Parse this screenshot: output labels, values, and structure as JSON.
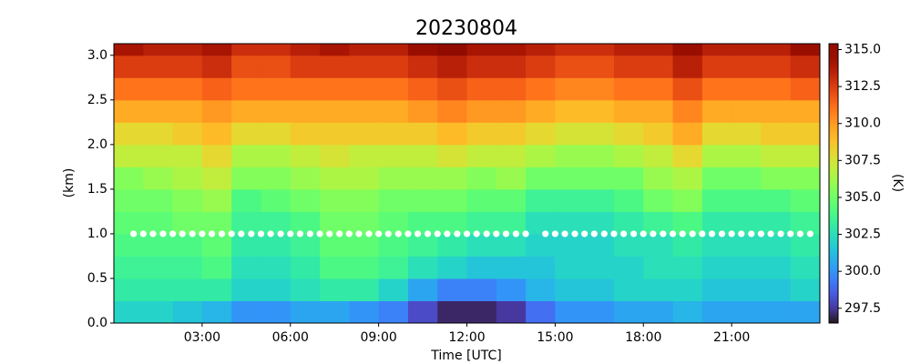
{
  "chart_data": {
    "type": "heatmap",
    "title": "20230804",
    "xlabel": "Time [UTC]",
    "ylabel": "(km)",
    "colorbar_label": "(K)",
    "colormap": "turbo",
    "clim": [
      296.5,
      315.4
    ],
    "colorbar_ticks": [
      297.5,
      {
        "value": 300,
        "label": "300.0"
      },
      302.5,
      {
        "value": 305,
        "label": "305.0"
      },
      307.5,
      {
        "value": 310,
        "label": "310.0"
      },
      312.5,
      {
        "value": 315,
        "label": "315.0"
      }
    ],
    "xlim": [
      0,
      24
    ],
    "ylim": [
      0,
      3.13
    ],
    "xticks": [
      {
        "value": 3,
        "label": "03:00"
      },
      {
        "value": 6,
        "label": "06:00"
      },
      {
        "value": 9,
        "label": "09:00"
      },
      {
        "value": 12,
        "label": "12:00"
      },
      {
        "value": 15,
        "label": "15:00"
      },
      {
        "value": 18,
        "label": "18:00"
      },
      {
        "value": 21,
        "label": "21:00"
      }
    ],
    "yticks": [
      {
        "value": 0,
        "label": "0.0"
      },
      0.5,
      {
        "value": 1,
        "label": "1.0"
      },
      1.5,
      {
        "value": 2,
        "label": "2.0"
      },
      2.5,
      {
        "value": 3,
        "label": "3.0"
      }
    ],
    "x_edges": [
      0,
      1,
      2,
      3,
      4,
      5,
      6,
      7,
      8,
      9,
      10,
      11,
      12,
      13,
      14,
      15,
      16,
      17,
      18,
      19,
      20,
      21,
      22,
      23,
      24
    ],
    "y_edges": [
      0,
      0.25,
      0.5,
      0.75,
      1,
      1.25,
      1.5,
      1.75,
      2,
      2.25,
      2.5,
      2.75,
      3,
      3.13
    ],
    "z": [
      [
        302,
        302,
        301.5,
        301,
        300,
        300,
        300.5,
        300.5,
        300,
        299.5,
        298,
        297,
        297,
        297.5,
        299,
        300,
        300,
        300.5,
        300.5,
        301,
        300.5,
        300.5,
        300.5,
        300.5
      ],
      [
        303,
        303,
        303,
        303,
        302,
        302,
        302.5,
        303,
        303,
        302,
        300.5,
        299.5,
        299.5,
        300,
        301,
        301.5,
        301.5,
        302,
        302,
        302,
        301.5,
        301.5,
        301.5,
        302
      ],
      [
        303.5,
        303.5,
        303.5,
        304,
        302.5,
        302.5,
        303,
        304,
        304,
        303.5,
        302.5,
        302,
        301.5,
        301.5,
        301.5,
        302,
        302,
        302,
        302.5,
        302.5,
        302,
        302,
        302,
        302.5
      ],
      [
        304,
        304,
        304,
        304.5,
        303,
        303,
        303.5,
        304.5,
        304.5,
        304,
        303.5,
        303,
        302.5,
        302.5,
        302,
        302,
        302,
        302.5,
        302.5,
        303,
        302.5,
        302.5,
        302.5,
        303
      ],
      [
        304.5,
        304.5,
        305,
        305,
        303.5,
        303.5,
        304,
        305,
        305,
        304.5,
        304,
        304,
        303.5,
        303.5,
        302.5,
        302.5,
        302.5,
        303,
        303.5,
        304,
        303,
        303,
        303,
        303.5
      ],
      [
        305,
        305,
        305.5,
        306,
        304,
        304.5,
        305,
        305.5,
        305.5,
        305,
        305,
        305,
        304.5,
        304.5,
        303.5,
        303.5,
        303.5,
        304,
        305,
        305.5,
        304,
        304,
        304,
        304.5
      ],
      [
        305.5,
        306,
        306.5,
        307,
        305.5,
        305.5,
        306,
        306.5,
        306.5,
        306,
        306,
        306,
        305.5,
        306,
        305,
        305,
        305,
        305,
        306,
        306.5,
        305,
        305,
        305.5,
        305.5
      ],
      [
        307,
        307,
        307,
        308,
        306.5,
        306.5,
        307,
        307.5,
        307,
        307,
        307,
        307.5,
        307,
        307,
        306.5,
        306,
        306,
        306.5,
        307,
        308,
        306.5,
        306.5,
        307,
        307
      ],
      [
        308,
        308,
        308.5,
        309,
        308,
        308,
        308.5,
        308.5,
        308.5,
        308.5,
        308.5,
        309,
        308.5,
        308.5,
        308,
        307.5,
        307.5,
        308,
        308.5,
        309.5,
        308,
        308,
        308.5,
        308.5
      ],
      [
        309.5,
        309.5,
        309.5,
        310,
        309.5,
        309.5,
        309.5,
        309.5,
        309.5,
        309.5,
        310,
        310.5,
        310,
        310,
        309.5,
        309,
        309,
        309.5,
        309.5,
        310.5,
        309.5,
        309.5,
        309.5,
        309.5
      ],
      [
        311,
        311,
        311,
        311.5,
        311,
        311,
        311,
        311,
        311,
        311,
        311.5,
        312,
        311.5,
        311.5,
        311,
        310.5,
        310.5,
        311,
        311,
        312,
        311,
        311,
        311,
        311.5
      ],
      [
        312.5,
        312.5,
        312.5,
        313,
        312,
        312,
        312.5,
        312.5,
        312.5,
        312.5,
        313,
        313.5,
        313,
        313,
        312.5,
        312,
        312,
        312.5,
        312.5,
        313.5,
        312.5,
        312.5,
        312.5,
        313
      ],
      [
        314,
        313.5,
        313.5,
        314,
        313,
        313,
        313.5,
        314,
        313.5,
        313.5,
        314.5,
        315,
        314,
        314,
        313.5,
        313,
        313,
        313.5,
        313.5,
        314.5,
        313.5,
        313.5,
        313.5,
        314.5
      ]
    ],
    "markers": {
      "color": "#ffffff",
      "x": [
        0.67,
        1,
        1.33,
        1.67,
        2,
        2.33,
        2.67,
        3,
        3.33,
        3.67,
        4,
        4.33,
        4.67,
        5,
        5.33,
        5.67,
        6,
        6.33,
        6.67,
        7,
        7.33,
        7.67,
        8,
        8.33,
        8.67,
        9,
        9.33,
        9.67,
        10,
        10.33,
        10.67,
        11,
        11.33,
        11.67,
        12,
        12.33,
        12.67,
        13,
        13.33,
        13.67,
        14,
        14.67,
        15,
        15.33,
        15.67,
        16,
        16.33,
        16.67,
        17,
        17.33,
        17.67,
        18,
        18.33,
        18.67,
        19,
        19.33,
        19.67,
        20,
        20.33,
        20.67,
        21,
        21.33,
        21.67,
        22,
        22.33,
        22.67,
        23,
        23.33,
        23.67
      ],
      "values": [
        1,
        1,
        1,
        1,
        1,
        1,
        1,
        1,
        1,
        1,
        1,
        1,
        1,
        1,
        1,
        1,
        1,
        1,
        1,
        1,
        1,
        1,
        1,
        1,
        1,
        1,
        1,
        1,
        1,
        1,
        1,
        1,
        1,
        1,
        1,
        1,
        1,
        1,
        1,
        1,
        1,
        1,
        1,
        1,
        1,
        1,
        1,
        1,
        1,
        1,
        1,
        1,
        1,
        1,
        1,
        1,
        1,
        1,
        1,
        1,
        1,
        1,
        1,
        1,
        1,
        1,
        1,
        1,
        1
      ]
    }
  }
}
